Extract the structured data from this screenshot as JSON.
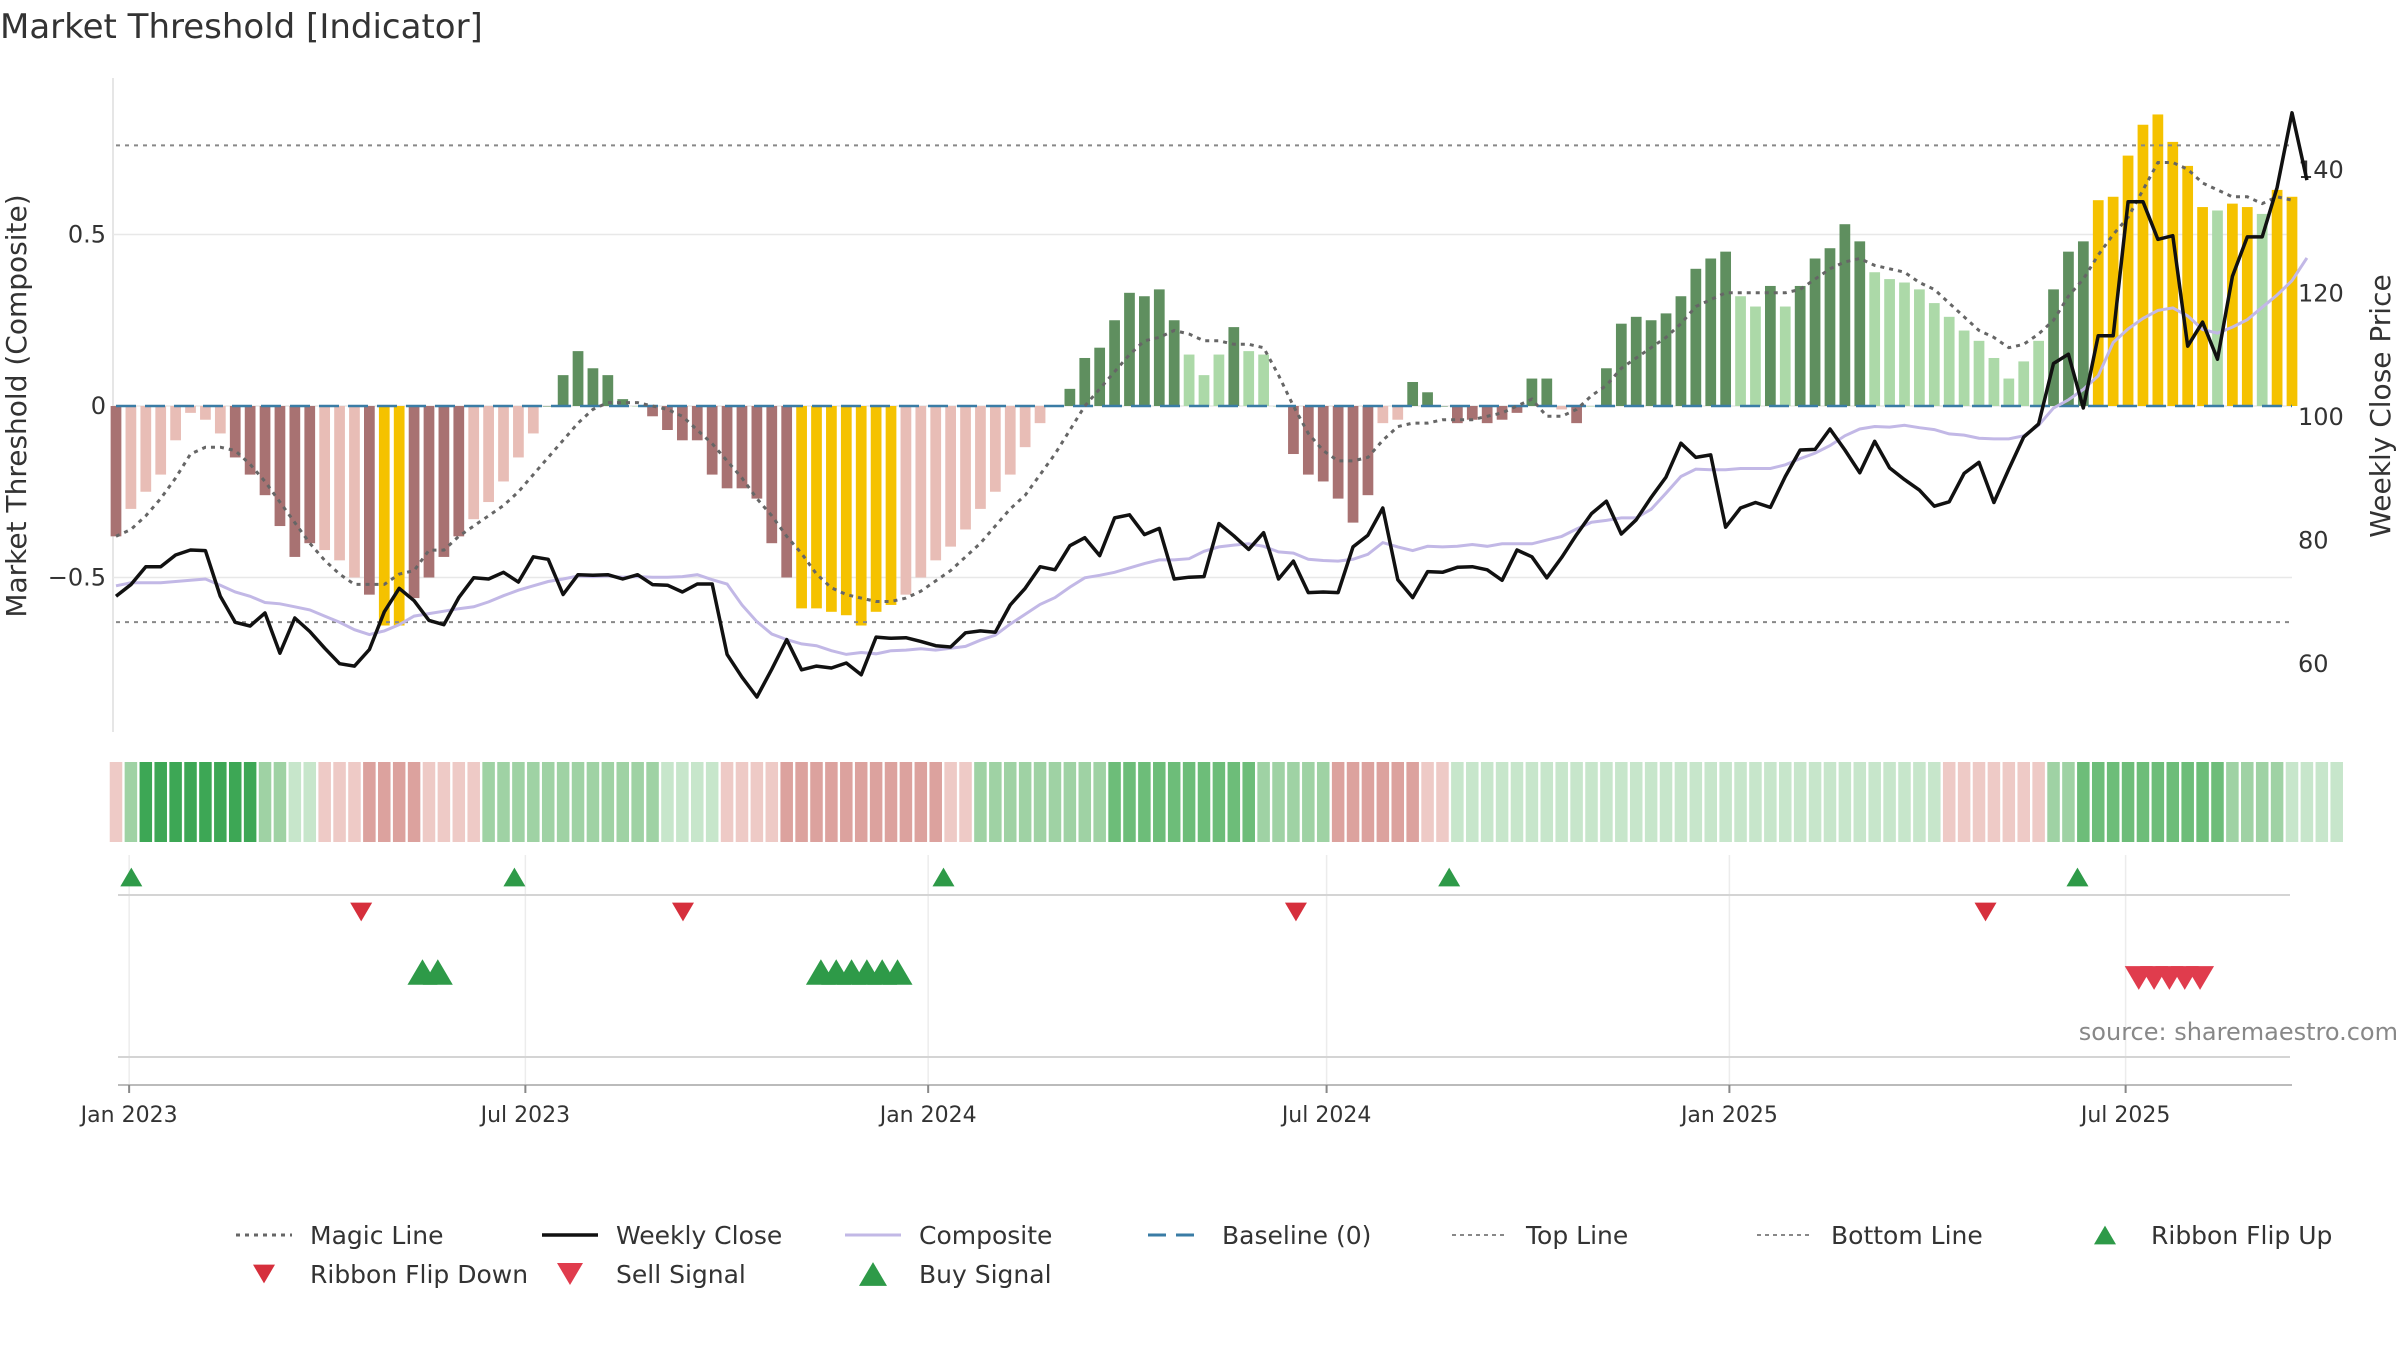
{
  "chart_data": {
    "type": "bar",
    "title": "Market Threshold [Indicator]",
    "ylabel_left": "Market Threshold (Composite)",
    "ylabel_right": "Weekly Close Price",
    "source": "source: sharemaestro.com",
    "y_left": {
      "range": [
        -0.94,
        0.94
      ],
      "ticks": [
        0.5,
        0,
        -0.5
      ],
      "tick_labels": [
        "0.5",
        "0",
        "−0.5"
      ]
    },
    "y_right": {
      "range": [
        50.0,
        155.5
      ],
      "ticks": [
        140,
        120,
        100,
        80,
        60
      ],
      "tick_labels": [
        "140",
        "120",
        "100",
        "80",
        "60"
      ]
    },
    "x_axis": {
      "start": "2022-12-26",
      "end": "2025-09-15",
      "ticks": [
        {
          "date": "2023-01-01",
          "label": "Jan 2023"
        },
        {
          "date": "2023-07-01",
          "label": "Jul 2023"
        },
        {
          "date": "2024-01-01",
          "label": "Jan 2024"
        },
        {
          "date": "2024-07-01",
          "label": "Jul 2024"
        },
        {
          "date": "2025-01-01",
          "label": "Jan 2025"
        },
        {
          "date": "2025-07-01",
          "label": "Jul 2025"
        }
      ]
    },
    "reference_lines": {
      "baseline": 0,
      "top_line": 0.76,
      "bottom_line": -0.63
    },
    "colors": {
      "strong_bear": "#a87272",
      "weak_bear": "#e8bdb6",
      "strong_bull": "#5f8f5f",
      "weak_bull": "#acd9a8",
      "extreme": "#f5c200",
      "weekly_close": "#111111",
      "composite": "#c2b8e6",
      "magic_line": "#666666",
      "baseline": "#3a7ca5",
      "threshold": "#888888",
      "up_marker": "#2e9a48",
      "down_marker": "#d62f3c",
      "sell_marker": "#e03c4d"
    },
    "composite_bars": [
      -0.38,
      -0.3,
      -0.25,
      -0.2,
      -0.1,
      -0.02,
      -0.04,
      -0.08,
      -0.15,
      -0.2,
      -0.26,
      -0.35,
      -0.44,
      -0.4,
      -0.42,
      -0.45,
      -0.5,
      -0.55,
      -0.64,
      -0.64,
      -0.56,
      -0.5,
      -0.44,
      -0.38,
      -0.33,
      -0.28,
      -0.22,
      -0.15,
      -0.08,
      0.0,
      0.09,
      0.16,
      0.11,
      0.09,
      0.02,
      0.0,
      -0.03,
      -0.07,
      -0.1,
      -0.1,
      -0.2,
      -0.24,
      -0.24,
      -0.27,
      -0.4,
      -0.5,
      -0.59,
      -0.59,
      -0.6,
      -0.61,
      -0.64,
      -0.6,
      -0.58,
      -0.55,
      -0.5,
      -0.45,
      -0.41,
      -0.36,
      -0.3,
      -0.25,
      -0.2,
      -0.12,
      -0.05,
      0.0,
      0.05,
      0.14,
      0.17,
      0.25,
      0.33,
      0.32,
      0.34,
      0.25,
      0.15,
      0.09,
      0.15,
      0.23,
      0.16,
      0.15,
      0.0,
      -0.14,
      -0.2,
      -0.22,
      -0.27,
      -0.34,
      -0.26,
      -0.05,
      -0.04,
      0.07,
      0.04,
      0.0,
      -0.05,
      -0.04,
      -0.05,
      -0.04,
      -0.02,
      0.08,
      0.08,
      -0.01,
      -0.05,
      0.0,
      0.11,
      0.24,
      0.26,
      0.25,
      0.27,
      0.32,
      0.4,
      0.43,
      0.45,
      0.32,
      0.29,
      0.35,
      0.29,
      0.35,
      0.43,
      0.46,
      0.53,
      0.48,
      0.39,
      0.37,
      0.36,
      0.34,
      0.3,
      0.26,
      0.22,
      0.19,
      0.14,
      0.08,
      0.13,
      0.19,
      0.34,
      0.45,
      0.48,
      0.6,
      0.61,
      0.73,
      0.82,
      0.85,
      0.77,
      0.7,
      0.58,
      0.57,
      0.59,
      0.58,
      0.56,
      0.63,
      0.61
    ],
    "weekly_close": [
      70.8,
      72.7,
      75.6,
      75.6,
      77.5,
      78.3,
      78.2,
      70.8,
      66.6,
      66.0,
      68.1,
      61.6,
      67.3,
      65.1,
      62.4,
      59.9,
      59.5,
      62.2,
      68.3,
      72.1,
      70.1,
      66.9,
      66.2,
      70.6,
      73.8,
      73.6,
      74.7,
      73.1,
      77.2,
      76.8,
      71.1,
      74.3,
      74.2,
      74.3,
      73.6,
      74.3,
      72.7,
      72.6,
      71.5,
      72.8,
      72.8,
      61.4,
      57.7,
      54.5,
      59.0,
      63.8,
      58.9,
      59.5,
      59.2,
      60.0,
      58.1,
      64.2,
      64.0,
      64.1,
      63.5,
      62.8,
      62.6,
      64.9,
      65.2,
      65.0,
      69.4,
      72.1,
      75.6,
      75.1,
      79.0,
      80.3,
      77.4,
      83.5,
      84.0,
      80.8,
      81.8,
      73.6,
      73.9,
      74.0,
      82.6,
      80.6,
      78.4,
      81.1,
      73.6,
      76.5,
      71.4,
      71.5,
      71.4,
      78.8,
      80.7,
      85.1,
      73.5,
      70.6,
      74.8,
      74.7,
      75.5,
      75.6,
      75.1,
      73.4,
      78.3,
      77.2,
      73.8,
      77.1,
      80.8,
      84.2,
      86.2,
      80.9,
      83.2,
      86.8,
      90.1,
      95.6,
      93.3,
      93.7,
      82.0,
      85.1,
      86.0,
      85.2,
      90.2,
      94.5,
      94.6,
      97.9,
      94.5,
      90.8,
      95.9,
      91.6,
      89.7,
      88.0,
      85.4,
      86.1,
      90.7,
      92.5,
      86.0,
      91.4,
      96.6,
      98.7,
      108.5,
      110.0,
      101.3,
      113.0,
      113.0,
      134.7,
      134.7,
      128.6,
      129.2,
      111.3,
      115.2,
      109.2,
      122.6,
      129.0,
      129.0,
      137.0,
      149.1,
      138.2
    ],
    "composite_line": [
      72.5,
      73.0,
      73.0,
      73.0,
      73.2,
      73.4,
      73.6,
      72.6,
      71.5,
      70.8,
      69.8,
      69.6,
      69.1,
      68.6,
      67.6,
      66.6,
      65.4,
      64.6,
      65.2,
      66.2,
      67.6,
      68.0,
      68.4,
      68.8,
      69.1,
      69.9,
      70.9,
      71.8,
      72.5,
      73.2,
      73.6,
      74.1,
      74.0,
      74.1,
      73.9,
      74.0,
      73.9,
      73.9,
      74.0,
      74.3,
      73.5,
      72.8,
      69.4,
      66.7,
      64.7,
      63.8,
      63.1,
      62.8,
      62.0,
      61.4,
      61.7,
      61.5,
      62.0,
      62.1,
      62.3,
      62.1,
      62.4,
      62.7,
      63.7,
      64.5,
      66.3,
      67.9,
      69.5,
      70.6,
      72.3,
      73.8,
      74.2,
      74.7,
      75.4,
      76.1,
      76.7,
      76.7,
      76.9,
      78.1,
      78.8,
      79.1,
      79.3,
      78.9,
      78.0,
      77.8,
      76.8,
      76.6,
      76.5,
      76.8,
      77.6,
      79.5,
      78.8,
      78.2,
      78.9,
      78.8,
      78.9,
      79.2,
      78.9,
      79.3,
      79.3,
      79.3,
      79.9,
      80.5,
      81.7,
      82.8,
      83.1,
      83.5,
      83.5,
      84.9,
      87.5,
      90.2,
      91.4,
      91.3,
      91.3,
      91.5,
      91.5,
      91.5,
      92.1,
      93.1,
      94.0,
      95.2,
      96.8,
      97.9,
      98.3,
      98.2,
      98.5,
      98.1,
      97.8,
      97.1,
      96.9,
      96.4,
      96.3,
      96.3,
      96.8,
      98.5,
      101.3,
      102.6,
      104.3,
      106.5,
      111.9,
      114.1,
      115.8,
      117.1,
      117.5,
      116.2,
      114.0,
      113.4,
      114.4,
      115.6,
      117.6,
      119.6,
      121.9,
      125.6
    ],
    "magic_line": [
      -0.38,
      -0.36,
      -0.32,
      -0.27,
      -0.21,
      -0.14,
      -0.12,
      -0.12,
      -0.13,
      -0.17,
      -0.22,
      -0.28,
      -0.34,
      -0.4,
      -0.45,
      -0.49,
      -0.52,
      -0.52,
      -0.52,
      -0.49,
      -0.48,
      -0.42,
      -0.42,
      -0.38,
      -0.35,
      -0.32,
      -0.29,
      -0.25,
      -0.2,
      -0.15,
      -0.1,
      -0.05,
      -0.01,
      0.01,
      0.01,
      0.01,
      0.0,
      -0.01,
      -0.03,
      -0.07,
      -0.11,
      -0.16,
      -0.21,
      -0.27,
      -0.32,
      -0.38,
      -0.43,
      -0.49,
      -0.53,
      -0.55,
      -0.56,
      -0.57,
      -0.57,
      -0.56,
      -0.54,
      -0.51,
      -0.48,
      -0.44,
      -0.4,
      -0.35,
      -0.3,
      -0.26,
      -0.2,
      -0.14,
      -0.07,
      0.0,
      0.05,
      0.1,
      0.15,
      0.19,
      0.2,
      0.22,
      0.21,
      0.19,
      0.19,
      0.18,
      0.18,
      0.17,
      0.09,
      0.0,
      -0.08,
      -0.13,
      -0.16,
      -0.16,
      -0.15,
      -0.1,
      -0.06,
      -0.05,
      -0.05,
      -0.04,
      -0.04,
      -0.04,
      -0.03,
      -0.02,
      0.0,
      0.02,
      -0.03,
      -0.03,
      -0.01,
      0.03,
      0.06,
      0.11,
      0.14,
      0.17,
      0.2,
      0.24,
      0.29,
      0.31,
      0.33,
      0.33,
      0.33,
      0.33,
      0.33,
      0.34,
      0.37,
      0.4,
      0.42,
      0.43,
      0.41,
      0.4,
      0.39,
      0.36,
      0.34,
      0.3,
      0.26,
      0.22,
      0.2,
      0.17,
      0.18,
      0.21,
      0.25,
      0.32,
      0.37,
      0.44,
      0.5,
      0.55,
      0.63,
      0.71,
      0.71,
      0.69,
      0.65,
      0.63,
      0.61,
      0.61,
      0.59,
      0.61,
      0.6
    ],
    "ribbon": [
      {
        "from": 0,
        "to": 0,
        "level": -1
      },
      {
        "from": 1,
        "to": 1,
        "level": 2
      },
      {
        "from": 2,
        "to": 9,
        "level": 4
      },
      {
        "from": 10,
        "to": 11,
        "level": 2
      },
      {
        "from": 12,
        "to": 13,
        "level": 1
      },
      {
        "from": 14,
        "to": 16,
        "level": -1
      },
      {
        "from": 17,
        "to": 20,
        "level": -2
      },
      {
        "from": 21,
        "to": 24,
        "level": -1
      },
      {
        "from": 25,
        "to": 32,
        "level": 2
      },
      {
        "from": 33,
        "to": 36,
        "level": 2
      },
      {
        "from": 37,
        "to": 40,
        "level": 1
      },
      {
        "from": 41,
        "to": 44,
        "level": -1
      },
      {
        "from": 45,
        "to": 55,
        "level": -2
      },
      {
        "from": 56,
        "to": 57,
        "level": -1
      },
      {
        "from": 58,
        "to": 58,
        "level": 2
      },
      {
        "from": 59,
        "to": 61,
        "level": 2
      },
      {
        "from": 62,
        "to": 66,
        "level": 2
      },
      {
        "from": 67,
        "to": 76,
        "level": 3
      },
      {
        "from": 77,
        "to": 81,
        "level": 2
      },
      {
        "from": 82,
        "to": 87,
        "level": -2
      },
      {
        "from": 88,
        "to": 89,
        "level": -1
      },
      {
        "from": 90,
        "to": 122,
        "level": 1
      },
      {
        "from": 123,
        "to": 129,
        "level": -1
      },
      {
        "from": 130,
        "to": 131,
        "level": 2
      },
      {
        "from": 132,
        "to": 141,
        "level": 3
      },
      {
        "from": 142,
        "to": 145,
        "level": 2
      },
      {
        "from": 146,
        "to": 149,
        "level": 1
      }
    ],
    "ribbon_flip_up": [
      "2023-01-02",
      "2023-06-26",
      "2024-01-08",
      "2024-08-26",
      "2025-06-09"
    ],
    "ribbon_flip_down": [
      "2023-04-17",
      "2023-09-11",
      "2024-06-17",
      "2025-04-28"
    ],
    "buy_signals": [
      "2023-05-15",
      "2023-05-22",
      "2023-11-13",
      "2023-11-20",
      "2023-11-27",
      "2023-12-04",
      "2023-12-11",
      "2023-12-18"
    ],
    "sell_signals": [
      "2025-07-07",
      "2025-07-14",
      "2025-07-21",
      "2025-07-28",
      "2025-08-04"
    ],
    "legend": [
      {
        "label": "Magic Line",
        "kind": "dotted"
      },
      {
        "label": "Weekly Close",
        "kind": "solid"
      },
      {
        "label": "Composite",
        "kind": "solid-light"
      },
      {
        "label": "Baseline (0)",
        "kind": "dashed"
      },
      {
        "label": "Top Line",
        "kind": "dotted-gray"
      },
      {
        "label": "Bottom Line",
        "kind": "dotted-gray"
      },
      {
        "label": "Ribbon Flip Up",
        "kind": "triangle-up"
      },
      {
        "label": "Ribbon Flip Down",
        "kind": "triangle-down"
      },
      {
        "label": "Sell Signal",
        "kind": "triangle-down-large"
      },
      {
        "label": "Buy Signal",
        "kind": "triangle-up-large"
      }
    ]
  }
}
